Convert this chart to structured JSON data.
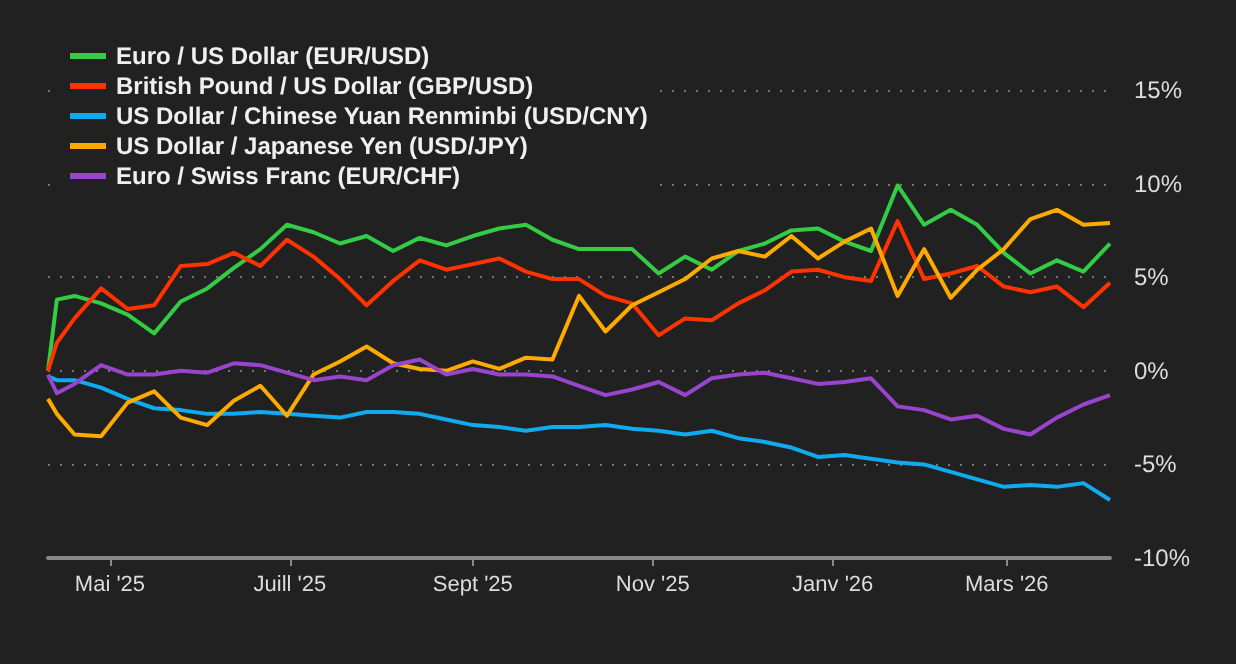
{
  "chart_data": {
    "type": "line",
    "x": [
      "2025-04-10",
      "2025-04-13",
      "2025-04-19",
      "2025-04-28",
      "2025-05-07",
      "2025-05-16",
      "2025-05-25",
      "2025-06-03",
      "2025-06-12",
      "2025-06-21",
      "2025-06-30",
      "2025-07-09",
      "2025-07-18",
      "2025-07-27",
      "2025-08-05",
      "2025-08-14",
      "2025-08-23",
      "2025-09-01",
      "2025-09-10",
      "2025-09-19",
      "2025-09-28",
      "2025-10-07",
      "2025-10-16",
      "2025-10-25",
      "2025-11-03",
      "2025-11-12",
      "2025-11-21",
      "2025-11-30",
      "2025-12-09",
      "2025-12-18",
      "2025-12-27",
      "2026-01-05",
      "2026-01-14",
      "2026-01-23",
      "2026-02-01",
      "2026-02-10",
      "2026-02-19",
      "2026-02-28",
      "2026-03-09",
      "2026-03-18",
      "2026-03-27",
      "2026-04-05"
    ],
    "series": [
      {
        "name": "Euro / US Dollar (EUR/USD)",
        "color": "#33cc44",
        "values": [
          0.0,
          3.8,
          4.0,
          3.6,
          3.0,
          2.0,
          3.7,
          4.4,
          5.5,
          6.5,
          7.8,
          7.4,
          6.8,
          7.2,
          6.4,
          7.1,
          6.7,
          7.2,
          7.6,
          7.8,
          7.0,
          6.5,
          6.5,
          6.5,
          5.2,
          6.1,
          5.4,
          6.4,
          6.8,
          7.5,
          7.6,
          6.9,
          6.4,
          9.9,
          7.8,
          8.6,
          7.8,
          6.3,
          5.2,
          5.9,
          5.3,
          6.8
        ]
      },
      {
        "name": "British Pound / US Dollar (GBP/USD)",
        "color": "#ff3300",
        "values": [
          0.0,
          1.5,
          2.8,
          4.4,
          3.3,
          3.5,
          5.6,
          5.7,
          6.3,
          5.6,
          7.0,
          6.1,
          4.9,
          3.5,
          4.8,
          5.9,
          5.4,
          5.7,
          6.0,
          5.3,
          4.9,
          4.9,
          4.0,
          3.6,
          1.9,
          2.8,
          2.7,
          3.6,
          4.3,
          5.3,
          5.4,
          5.0,
          4.8,
          8.0,
          4.9,
          5.2,
          5.6,
          4.5,
          4.2,
          4.5,
          3.4,
          4.7
        ]
      },
      {
        "name": "US Dollar / Chinese Yuan Renminbi (USD/CNY)",
        "color": "#11aaee",
        "values": [
          -0.3,
          -0.5,
          -0.5,
          -0.9,
          -1.5,
          -2.0,
          -2.1,
          -2.3,
          -2.3,
          -2.2,
          -2.3,
          -2.4,
          -2.5,
          -2.2,
          -2.2,
          -2.3,
          -2.6,
          -2.9,
          -3.0,
          -3.2,
          -3.0,
          -3.0,
          -2.9,
          -3.1,
          -3.2,
          -3.4,
          -3.2,
          -3.6,
          -3.8,
          -4.1,
          -4.6,
          -4.5,
          -4.7,
          -4.9,
          -5.0,
          -5.4,
          -5.8,
          -6.2,
          -6.1,
          -6.2,
          -6.0,
          -6.9
        ]
      },
      {
        "name": "US Dollar / Japanese Yen (USD/JPY)",
        "color": "#ffaa00",
        "values": [
          -1.5,
          -2.3,
          -3.4,
          -3.5,
          -1.7,
          -1.1,
          -2.5,
          -2.9,
          -1.6,
          -0.8,
          -2.4,
          -0.2,
          0.5,
          1.3,
          0.4,
          0.1,
          0.0,
          0.5,
          0.1,
          0.7,
          0.6,
          4.0,
          2.1,
          3.5,
          4.2,
          4.9,
          6.0,
          6.4,
          6.1,
          7.2,
          6.0,
          6.9,
          7.6,
          4.0,
          6.5,
          3.9,
          5.4,
          6.5,
          8.1,
          8.6,
          7.8,
          7.9
        ]
      },
      {
        "name": "Euro / Swiss Franc (EUR/CHF)",
        "color": "#9944cc",
        "values": [
          -0.2,
          -1.2,
          -0.7,
          0.3,
          -0.2,
          -0.2,
          0.0,
          -0.1,
          0.4,
          0.3,
          -0.1,
          -0.5,
          -0.3,
          -0.5,
          0.3,
          0.6,
          -0.2,
          0.1,
          -0.2,
          -0.2,
          -0.3,
          -0.8,
          -1.3,
          -1.0,
          -0.6,
          -1.3,
          -0.4,
          -0.2,
          -0.1,
          -0.4,
          -0.7,
          -0.6,
          -0.4,
          -1.9,
          -2.1,
          -2.6,
          -2.4,
          -3.1,
          -3.4,
          -2.5,
          -1.8,
          -1.3
        ]
      }
    ],
    "xlim": [
      "2025-04-10",
      "2026-04-05"
    ],
    "xticks": [
      {
        "value": "2025-05-01",
        "label": "Mai '25"
      },
      {
        "value": "2025-07-01",
        "label": "Juill '25"
      },
      {
        "value": "2025-09-01",
        "label": "Sept '25"
      },
      {
        "value": "2025-11-01",
        "label": "Nov '25"
      },
      {
        "value": "2026-01-01",
        "label": "Janv '26"
      },
      {
        "value": "2026-03-01",
        "label": "Mars '26"
      }
    ],
    "ylim": [
      -10,
      15
    ],
    "yticks": [
      {
        "value": -10,
        "label": "-10%"
      },
      {
        "value": -5,
        "label": "-5%"
      },
      {
        "value": 0,
        "label": "0%"
      },
      {
        "value": 5,
        "label": "5%"
      },
      {
        "value": 10,
        "label": "10%"
      },
      {
        "value": 15,
        "label": "15%"
      }
    ],
    "grid": "y",
    "legend": "top left",
    "marker": "none",
    "line_style": "solid"
  }
}
